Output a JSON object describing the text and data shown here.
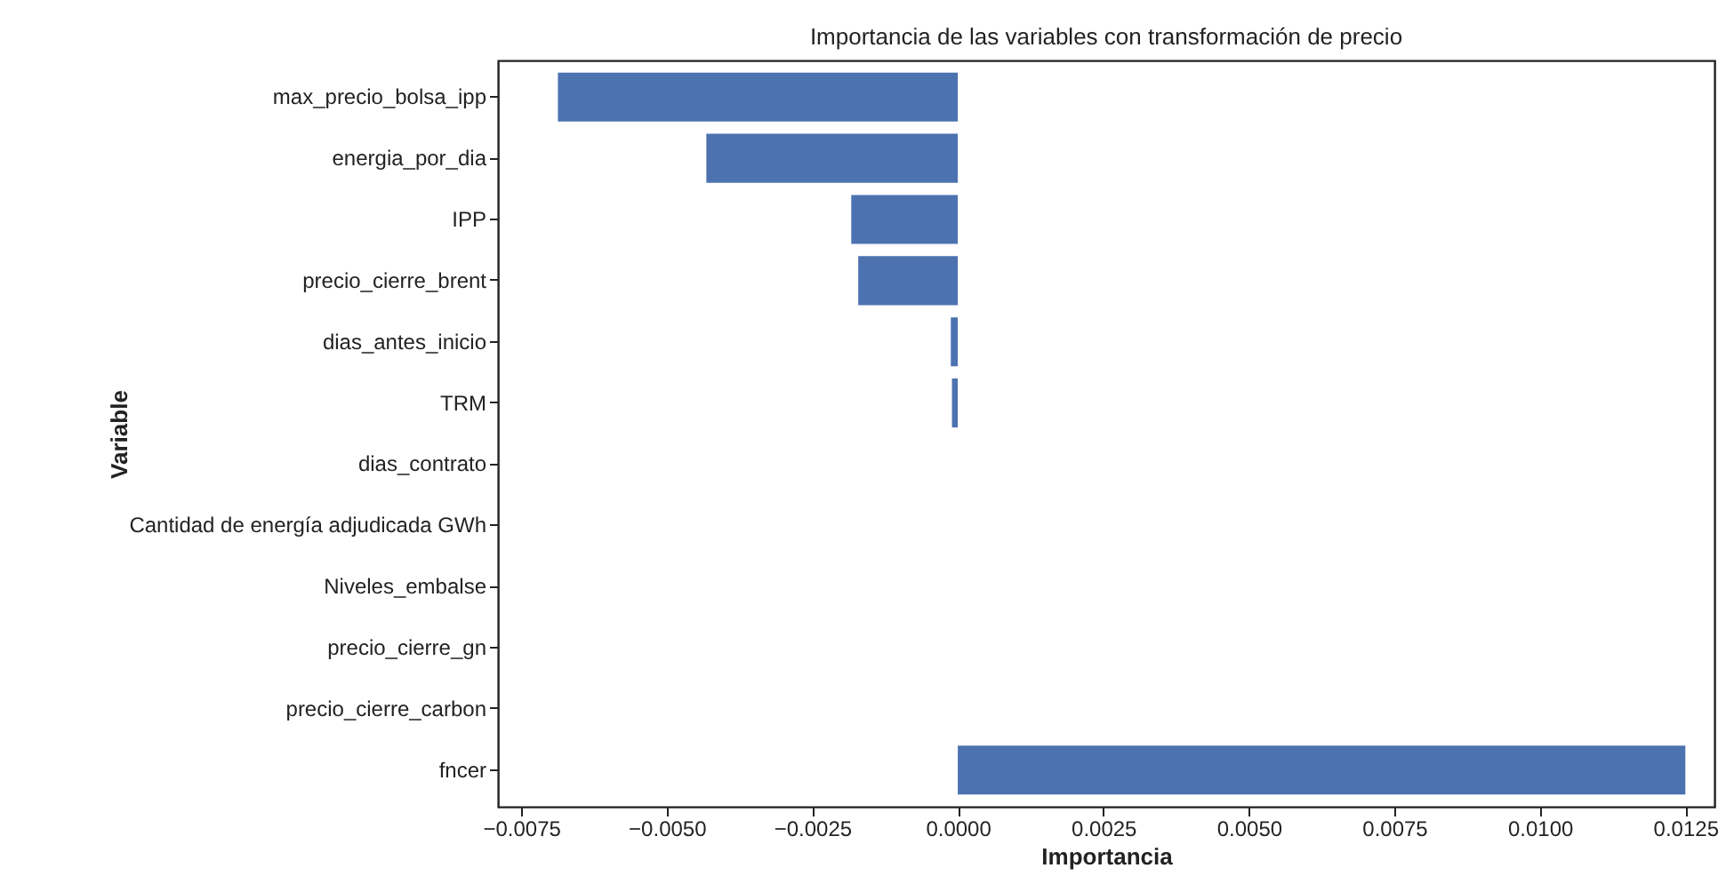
{
  "chart_data": {
    "type": "bar",
    "orientation": "horizontal",
    "title": "Importancia de las variables con transformación de precio",
    "xlabel": "Importancia",
    "ylabel": "Variable",
    "categories": [
      "max_precio_bolsa_ipp",
      "energia_por_dia",
      "IPP",
      "precio_cierre_brent",
      "dias_antes_inicio",
      "TRM",
      "dias_contrato",
      "Cantidad de energía adjudicada GWh",
      "Niveles_embalse",
      "precio_cierre_gn",
      "precio_cierre_carbon",
      "fncer"
    ],
    "values": [
      -0.00687,
      -0.00432,
      -0.00183,
      -0.00171,
      -0.00012,
      -0.0001,
      0,
      0,
      0,
      0,
      0,
      0.0125
    ],
    "color": "#4c72b0",
    "xlim": [
      -0.0079,
      0.013
    ],
    "xticks": [
      {
        "value": -0.0075,
        "label": "−0.0075"
      },
      {
        "value": -0.005,
        "label": "−0.0050"
      },
      {
        "value": -0.0025,
        "label": "−0.0025"
      },
      {
        "value": 0,
        "label": "0.0000"
      },
      {
        "value": 0.0025,
        "label": "0.0025"
      },
      {
        "value": 0.005,
        "label": "0.0050"
      },
      {
        "value": 0.0075,
        "label": "0.0075"
      },
      {
        "value": 0.01,
        "label": "0.0100"
      },
      {
        "value": 0.0125,
        "label": "0.0125"
      }
    ],
    "grid": false
  }
}
